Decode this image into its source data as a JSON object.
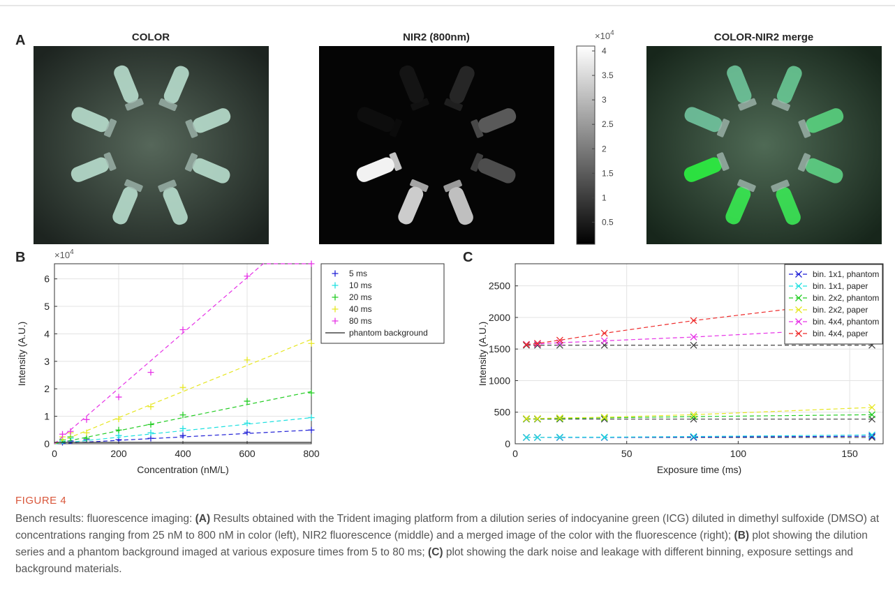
{
  "panel_a": {
    "label": "A",
    "images": [
      "COLOR",
      "NIR2 (800nm)",
      "COLOR-NIR2 merge"
    ],
    "colorbar": {
      "lim": [
        0.05,
        4.1
      ],
      "ticks": [
        0.5,
        1,
        1.5,
        2,
        2.5,
        3,
        3.5,
        4
      ],
      "scale_label": {
        "base": "×10",
        "exponent": "4"
      }
    }
  },
  "chart_data": [
    {
      "type": "line",
      "panel_label": "B",
      "x_label": "Concentration (nM/L)",
      "y_label": "Intensity (A.U.)",
      "y_scale_label": {
        "base": "×10",
        "exponent": "4"
      },
      "x": [
        25,
        50,
        100,
        200,
        300,
        400,
        600,
        800
      ],
      "xlim": [
        0,
        800
      ],
      "xticks": [
        0,
        200,
        400,
        600,
        800
      ],
      "ylim": [
        0,
        6.55
      ],
      "yticks": [
        0,
        1,
        2,
        3,
        4,
        5,
        6
      ],
      "grid": true,
      "legend": "outside-right",
      "marker": "+",
      "series": [
        {
          "name": "5 ms",
          "color": "#1f1fd6",
          "values": [
            0.05,
            0.1,
            0.15,
            0.15,
            0.2,
            0.3,
            0.42,
            0.5
          ],
          "line_x": [
            0,
            800
          ],
          "line_values": [
            0,
            0.5
          ],
          "dash": true
        },
        {
          "name": "10 ms",
          "color": "#1fe0e0",
          "values": [
            0.1,
            0.2,
            0.2,
            0.3,
            0.4,
            0.55,
            0.75,
            0.95
          ],
          "line_x": [
            0,
            800
          ],
          "line_values": [
            0,
            0.95
          ],
          "dash": true
        },
        {
          "name": "20 ms",
          "color": "#22cc22",
          "values": [
            0.15,
            0.25,
            0.2,
            0.5,
            0.7,
            1.05,
            1.55,
            1.85
          ],
          "line_x": [
            0,
            800
          ],
          "line_values": [
            0,
            1.9
          ],
          "dash": true
        },
        {
          "name": "40 ms",
          "color": "#e6e620",
          "values": [
            0.25,
            0.4,
            0.4,
            0.9,
            1.35,
            2.05,
            3.05,
            3.65
          ],
          "line_x": [
            0,
            800
          ],
          "line_values": [
            0,
            3.8
          ],
          "dash": true
        },
        {
          "name": "80 ms",
          "color": "#e632e6",
          "values": [
            0.35,
            0.45,
            0.88,
            1.7,
            2.6,
            4.15,
            6.1,
            6.55
          ],
          "line_x": [
            0,
            650,
            800
          ],
          "line_values": [
            0,
            6.55,
            6.55
          ],
          "dash": true
        },
        {
          "name": "phantom background",
          "color": "#222222",
          "line_x": [
            0,
            800
          ],
          "line_values": [
            0.05,
            0.05
          ],
          "dash": false
        }
      ]
    },
    {
      "type": "line",
      "panel_label": "C",
      "x_label": "Exposure time (ms)",
      "y_label": "Intensity (A.U.)",
      "x": [
        5,
        10,
        20,
        40,
        80,
        160
      ],
      "xlim": [
        0,
        165
      ],
      "xticks": [
        0,
        50,
        100,
        150
      ],
      "ylim": [
        0,
        2850
      ],
      "yticks": [
        0,
        500,
        1000,
        1500,
        2000,
        2500
      ],
      "grid": true,
      "legend": "upper-right",
      "marker": "x",
      "series": [
        {
          "name": "bin. 1x1, phantom",
          "color": "#1f1fd6",
          "values": [
            100,
            100,
            100,
            100,
            105,
            120
          ],
          "dash": true
        },
        {
          "name": "bin. 1x1, paper",
          "color": "#1fe0e0",
          "values": [
            100,
            100,
            105,
            105,
            115,
            140
          ],
          "dash": true
        },
        {
          "name": "bin. 2x2, phantom",
          "color": "#22cc22",
          "values": [
            395,
            395,
            400,
            410,
            430,
            460
          ],
          "dash": true
        },
        {
          "name": "bin. 2x2, paper",
          "color": "#e6e620",
          "values": [
            400,
            400,
            410,
            420,
            460,
            575
          ],
          "dash": true
        },
        {
          "name": "bin. 4x4, phantom",
          "color": "#e632e6",
          "values": [
            1575,
            1580,
            1600,
            1630,
            1690,
            1840
          ],
          "dash": true
        },
        {
          "name": "bin. 4x4, paper",
          "color": "#ee2b2b",
          "values": [
            1570,
            1590,
            1640,
            1750,
            1950,
            2290
          ],
          "dash": true
        }
      ],
      "reference": [
        {
          "color": "#444444",
          "values": [
            100,
            100,
            100,
            100,
            100,
            100
          ]
        },
        {
          "color": "#444444",
          "values": [
            390,
            390,
            390,
            390,
            390,
            390
          ]
        },
        {
          "color": "#444444",
          "values": [
            1560,
            1560,
            1560,
            1560,
            1560,
            1560
          ]
        }
      ]
    }
  ],
  "caption": {
    "figure": "FIGURE 4",
    "parts": [
      "Bench results: fluorescence imaging: ",
      "(A)",
      " Results obtained with the Trident imaging platform from a dilution series of indocyanine green (ICG) diluted in dimethyl sulfoxide (DMSO) at concentrations ranging from 25 nM to 800 nM in color (left), NIR2 fluorescence (middle) and a merged image of the color with the fluorescence (right); ",
      "(B)",
      " plot showing the dilution series and a phantom background imaged at various exposure times from 5 to 80 ms; ",
      "(C)",
      " plot showing the dark noise and leakage with different binning, exposure settings and background materials."
    ]
  }
}
